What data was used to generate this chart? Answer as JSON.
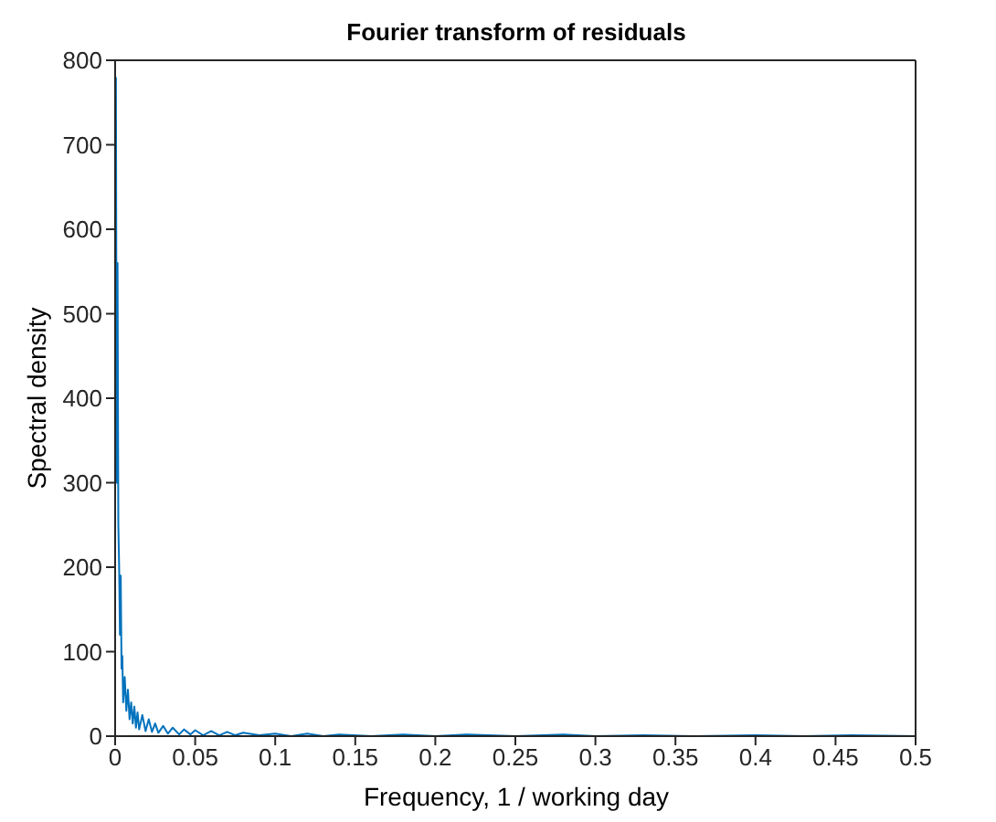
{
  "chart_data": {
    "type": "line",
    "title": "Fourier transform of residuals",
    "xlabel": "Frequency, 1 / working day",
    "ylabel": "Spectral density",
    "xlim": [
      0,
      0.5
    ],
    "xticks": [
      0,
      0.05,
      0.1,
      0.15,
      0.2,
      0.25,
      0.3,
      0.35,
      0.4,
      0.45,
      0.5
    ],
    "ylim": [
      0,
      800
    ],
    "yticks": [
      0,
      100,
      200,
      300,
      400,
      500,
      600,
      700,
      800
    ],
    "marker": "none",
    "line_style": "solid",
    "series": [
      {
        "color": "#0072bd",
        "x": [
          0.0005,
          0.001,
          0.0015,
          0.002,
          0.0025,
          0.003,
          0.0035,
          0.004,
          0.0045,
          0.005,
          0.006,
          0.007,
          0.008,
          0.009,
          0.01,
          0.011,
          0.012,
          0.013,
          0.014,
          0.015,
          0.017,
          0.019,
          0.021,
          0.023,
          0.025,
          0.027,
          0.03,
          0.033,
          0.036,
          0.04,
          0.043,
          0.047,
          0.05,
          0.055,
          0.06,
          0.065,
          0.07,
          0.075,
          0.08,
          0.09,
          0.1,
          0.11,
          0.12,
          0.13,
          0.14,
          0.16,
          0.18,
          0.2,
          0.22,
          0.25,
          0.28,
          0.3,
          0.33,
          0.36,
          0.4,
          0.43,
          0.46,
          0.5
        ],
        "values": [
          780,
          300,
          560,
          250,
          200,
          120,
          190,
          80,
          95,
          40,
          70,
          30,
          55,
          20,
          40,
          15,
          35,
          10,
          28,
          8,
          25,
          6,
          20,
          5,
          15,
          4,
          12,
          3,
          10,
          2,
          8,
          2,
          7,
          1,
          6,
          1,
          5,
          1,
          4,
          1,
          3,
          0,
          3,
          0,
          2,
          0,
          2,
          0,
          2,
          0,
          2,
          0,
          1,
          0,
          1,
          0,
          1,
          0
        ]
      }
    ]
  }
}
